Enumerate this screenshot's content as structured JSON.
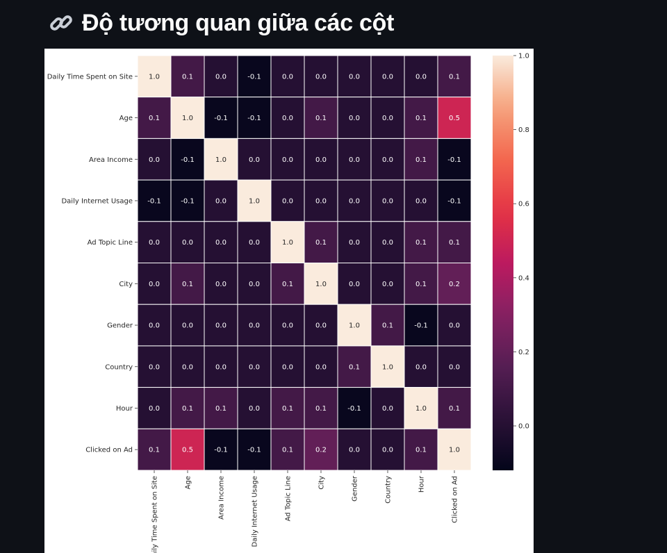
{
  "page": {
    "heading_icon": "link-icon",
    "heading": "Độ tương quan giữa các cột"
  },
  "chart_data": {
    "type": "heatmap",
    "labels": [
      "Daily Time Spent on Site",
      "Age",
      "Area Income",
      "Daily Internet Usage",
      "Ad Topic Line",
      "City",
      "Gender",
      "Country",
      "Hour",
      "Clicked on Ad"
    ],
    "values": [
      [
        1.0,
        0.1,
        0.0,
        -0.1,
        -0.0,
        -0.0,
        0.0,
        0.0,
        0.0,
        0.1
      ],
      [
        0.1,
        1.0,
        -0.1,
        -0.1,
        0.0,
        0.1,
        0.0,
        0.0,
        0.1,
        0.5
      ],
      [
        0.0,
        -0.1,
        1.0,
        0.0,
        0.0,
        -0.0,
        0.0,
        0.0,
        0.1,
        -0.1
      ],
      [
        -0.1,
        -0.1,
        0.0,
        1.0,
        0.0,
        -0.0,
        -0.0,
        0.0,
        -0.0,
        -0.1
      ],
      [
        -0.0,
        0.0,
        0.0,
        0.0,
        1.0,
        0.1,
        -0.0,
        0.0,
        0.1,
        0.1
      ],
      [
        -0.0,
        0.1,
        -0.0,
        -0.0,
        0.1,
        1.0,
        0.0,
        0.0,
        0.1,
        0.2
      ],
      [
        0.0,
        0.0,
        0.0,
        -0.0,
        -0.0,
        0.0,
        1.0,
        0.1,
        -0.1,
        -0.0
      ],
      [
        0.0,
        0.0,
        0.0,
        0.0,
        0.0,
        0.0,
        0.1,
        1.0,
        -0.0,
        -0.0
      ],
      [
        0.0,
        0.1,
        0.1,
        -0.0,
        0.1,
        0.1,
        -0.1,
        -0.0,
        1.0,
        0.1
      ],
      [
        0.1,
        0.5,
        -0.1,
        -0.1,
        0.1,
        0.2,
        -0.0,
        -0.0,
        0.1,
        1.0
      ]
    ],
    "colormap": "rocket",
    "vmin": -0.12,
    "vmax": 1.0,
    "colorbar_ticks": [
      0.0,
      0.2,
      0.4,
      0.6,
      0.8,
      1.0
    ],
    "colorbar_tick_labels": [
      "0.0",
      "0.2",
      "0.4",
      "0.6",
      "0.8",
      "1.0"
    ],
    "annotations": true,
    "grid": "white cell separators"
  }
}
